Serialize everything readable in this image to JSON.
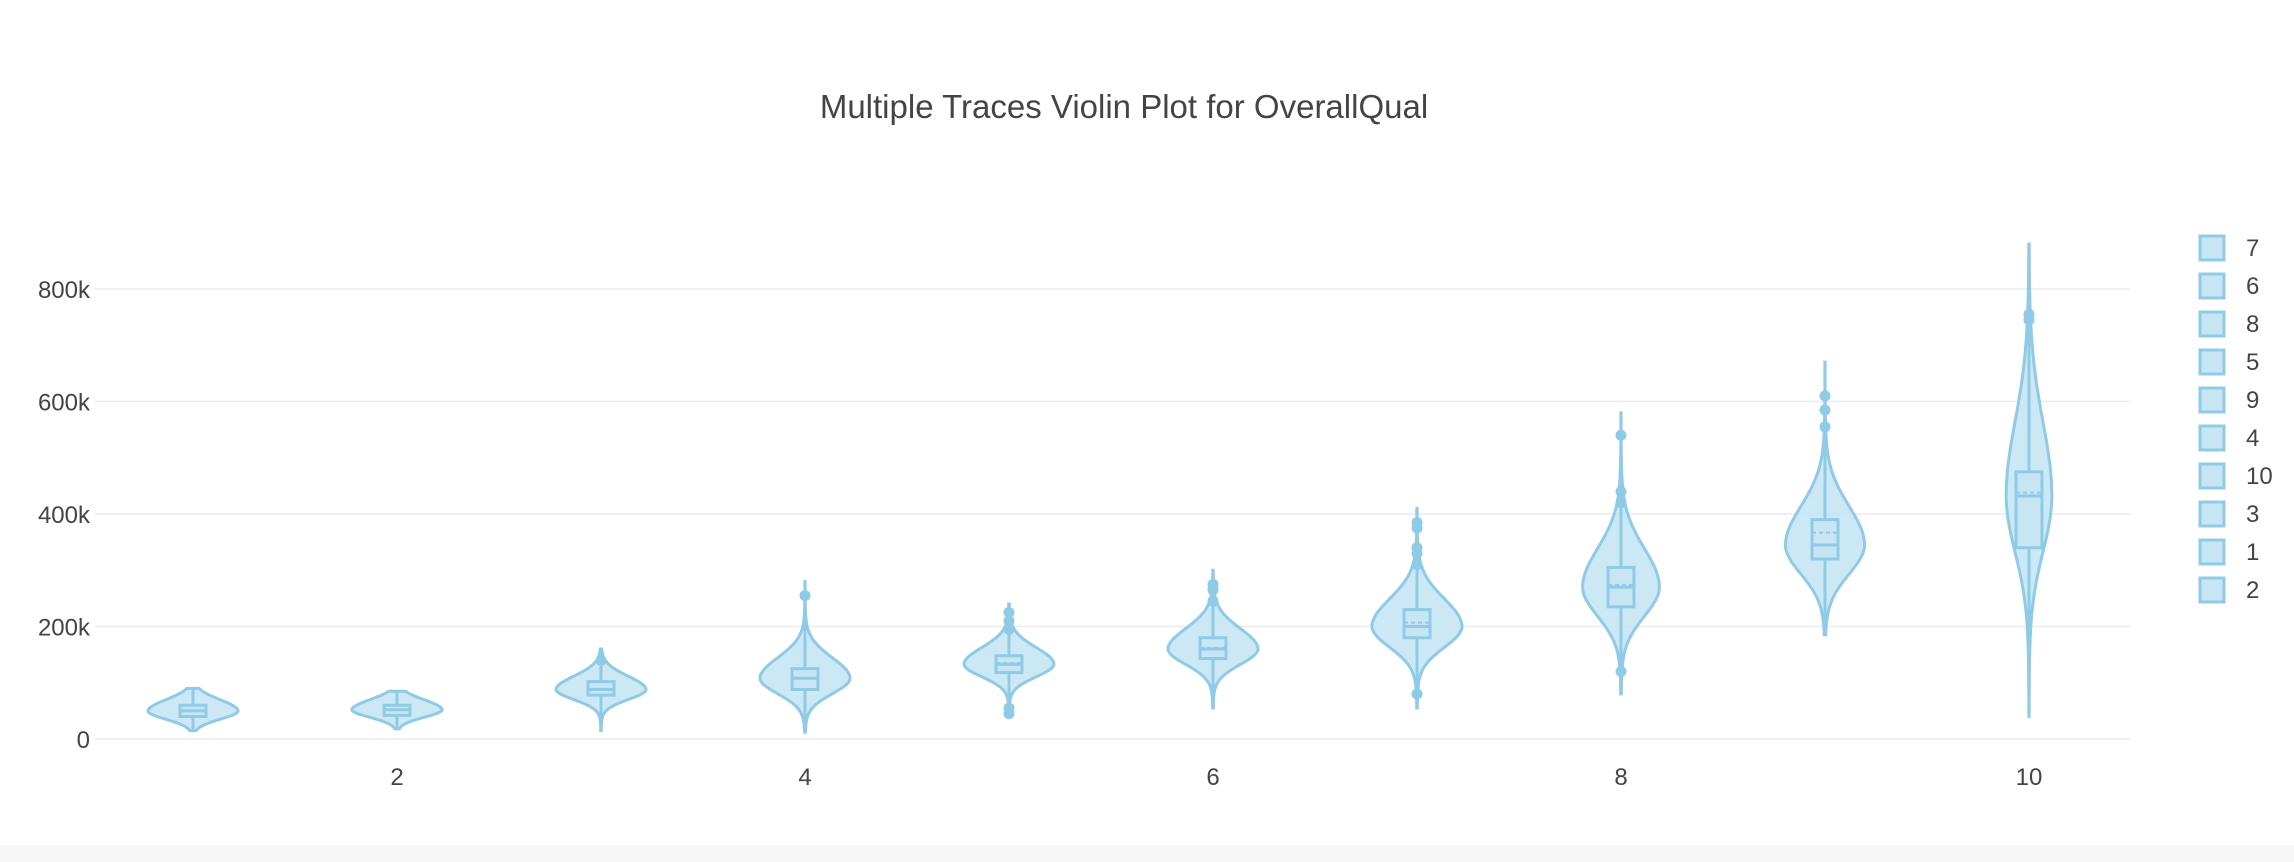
{
  "chart_data": {
    "type": "violin",
    "title": "Multiple Traces Violin Plot for OverallQual",
    "xlabel": "",
    "ylabel": "",
    "x_ticks": [
      "2",
      "4",
      "6",
      "8",
      "10"
    ],
    "x_tick_values": [
      2,
      4,
      6,
      8,
      10
    ],
    "xlim": [
      -0.3,
      10.5
    ],
    "y_ticks": [
      "0",
      "200k",
      "400k",
      "600k",
      "800k"
    ],
    "y_tick_values": [
      0,
      200000,
      400000,
      600000,
      800000
    ],
    "ylim": [
      0,
      900000
    ],
    "grid": true,
    "legend_position": "right",
    "legend": [
      "7",
      "6",
      "8",
      "5",
      "9",
      "4",
      "10",
      "3",
      "1",
      "2"
    ],
    "color": "#8fcbe6",
    "fill_color": "#c7e5f3",
    "series": [
      {
        "name": "1",
        "x": 1,
        "min": 15000,
        "max": 90000,
        "q1": 40000,
        "median": 50000,
        "q3": 60000,
        "mean": 50000,
        "outliers": []
      },
      {
        "name": "2",
        "x": 2,
        "min": 18000,
        "max": 85000,
        "q1": 42000,
        "median": 52000,
        "q3": 60000,
        "mean": 52000,
        "outliers": []
      },
      {
        "name": "3",
        "x": 3,
        "min": 15000,
        "max": 160000,
        "q1": 78000,
        "median": 88000,
        "q3": 102000,
        "mean": 88000,
        "outliers": [
          140000
        ]
      },
      {
        "name": "4",
        "x": 4,
        "min": 12000,
        "max": 280000,
        "q1": 88000,
        "median": 108000,
        "q3": 125000,
        "mean": 108000,
        "outliers": [
          255000
        ]
      },
      {
        "name": "5",
        "x": 5,
        "min": 40000,
        "max": 240000,
        "q1": 118000,
        "median": 133000,
        "q3": 148000,
        "mean": 135000,
        "outliers": [
          45000,
          55000,
          195000,
          210000,
          225000
        ]
      },
      {
        "name": "6",
        "x": 6,
        "min": 55000,
        "max": 300000,
        "q1": 143000,
        "median": 160000,
        "q3": 180000,
        "mean": 162000,
        "outliers": [
          245000,
          265000,
          275000
        ]
      },
      {
        "name": "7",
        "x": 7,
        "min": 55000,
        "max": 410000,
        "q1": 180000,
        "median": 200000,
        "q3": 230000,
        "mean": 207000,
        "outliers": [
          80000,
          310000,
          330000,
          340000,
          375000,
          385000
        ]
      },
      {
        "name": "8",
        "x": 8,
        "min": 80000,
        "max": 580000,
        "q1": 235000,
        "median": 270000,
        "q3": 305000,
        "mean": 274000,
        "outliers": [
          120000,
          420000,
          440000,
          540000
        ]
      },
      {
        "name": "9",
        "x": 9,
        "min": 185000,
        "max": 670000,
        "q1": 320000,
        "median": 345000,
        "q3": 390000,
        "mean": 367000,
        "outliers": [
          555000,
          585000,
          610000
        ]
      },
      {
        "name": "10",
        "x": 10,
        "min": 40000,
        "max": 880000,
        "q1": 340000,
        "median": 432000,
        "q3": 475000,
        "mean": 438000,
        "outliers": [
          745000,
          755000
        ]
      }
    ]
  }
}
